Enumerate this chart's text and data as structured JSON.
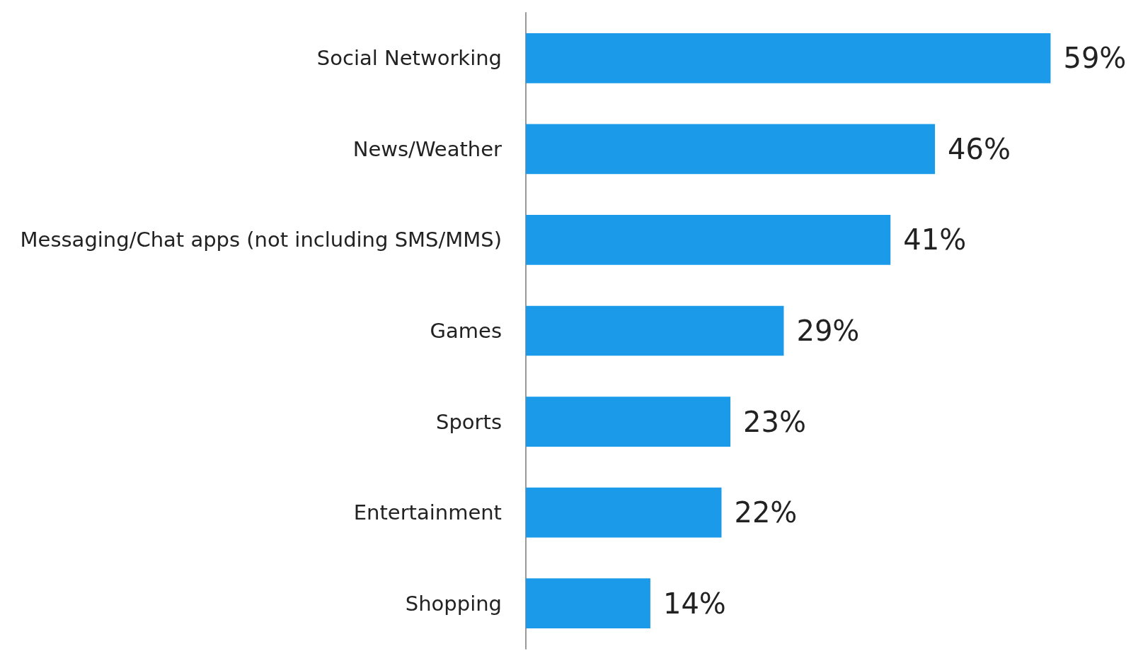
{
  "chart_data": {
    "type": "bar",
    "orientation": "horizontal",
    "categories": [
      "Social Networking",
      "News/Weather",
      "Messaging/Chat apps (not including SMS/MMS)",
      "Games",
      "Sports",
      "Entertainment",
      "Shopping"
    ],
    "values": [
      59,
      46,
      41,
      29,
      23,
      22,
      14
    ],
    "value_labels": [
      "59%",
      "46%",
      "41%",
      "29%",
      "23%",
      "22%",
      "14%"
    ],
    "color": "#1a9ae8"
  }
}
